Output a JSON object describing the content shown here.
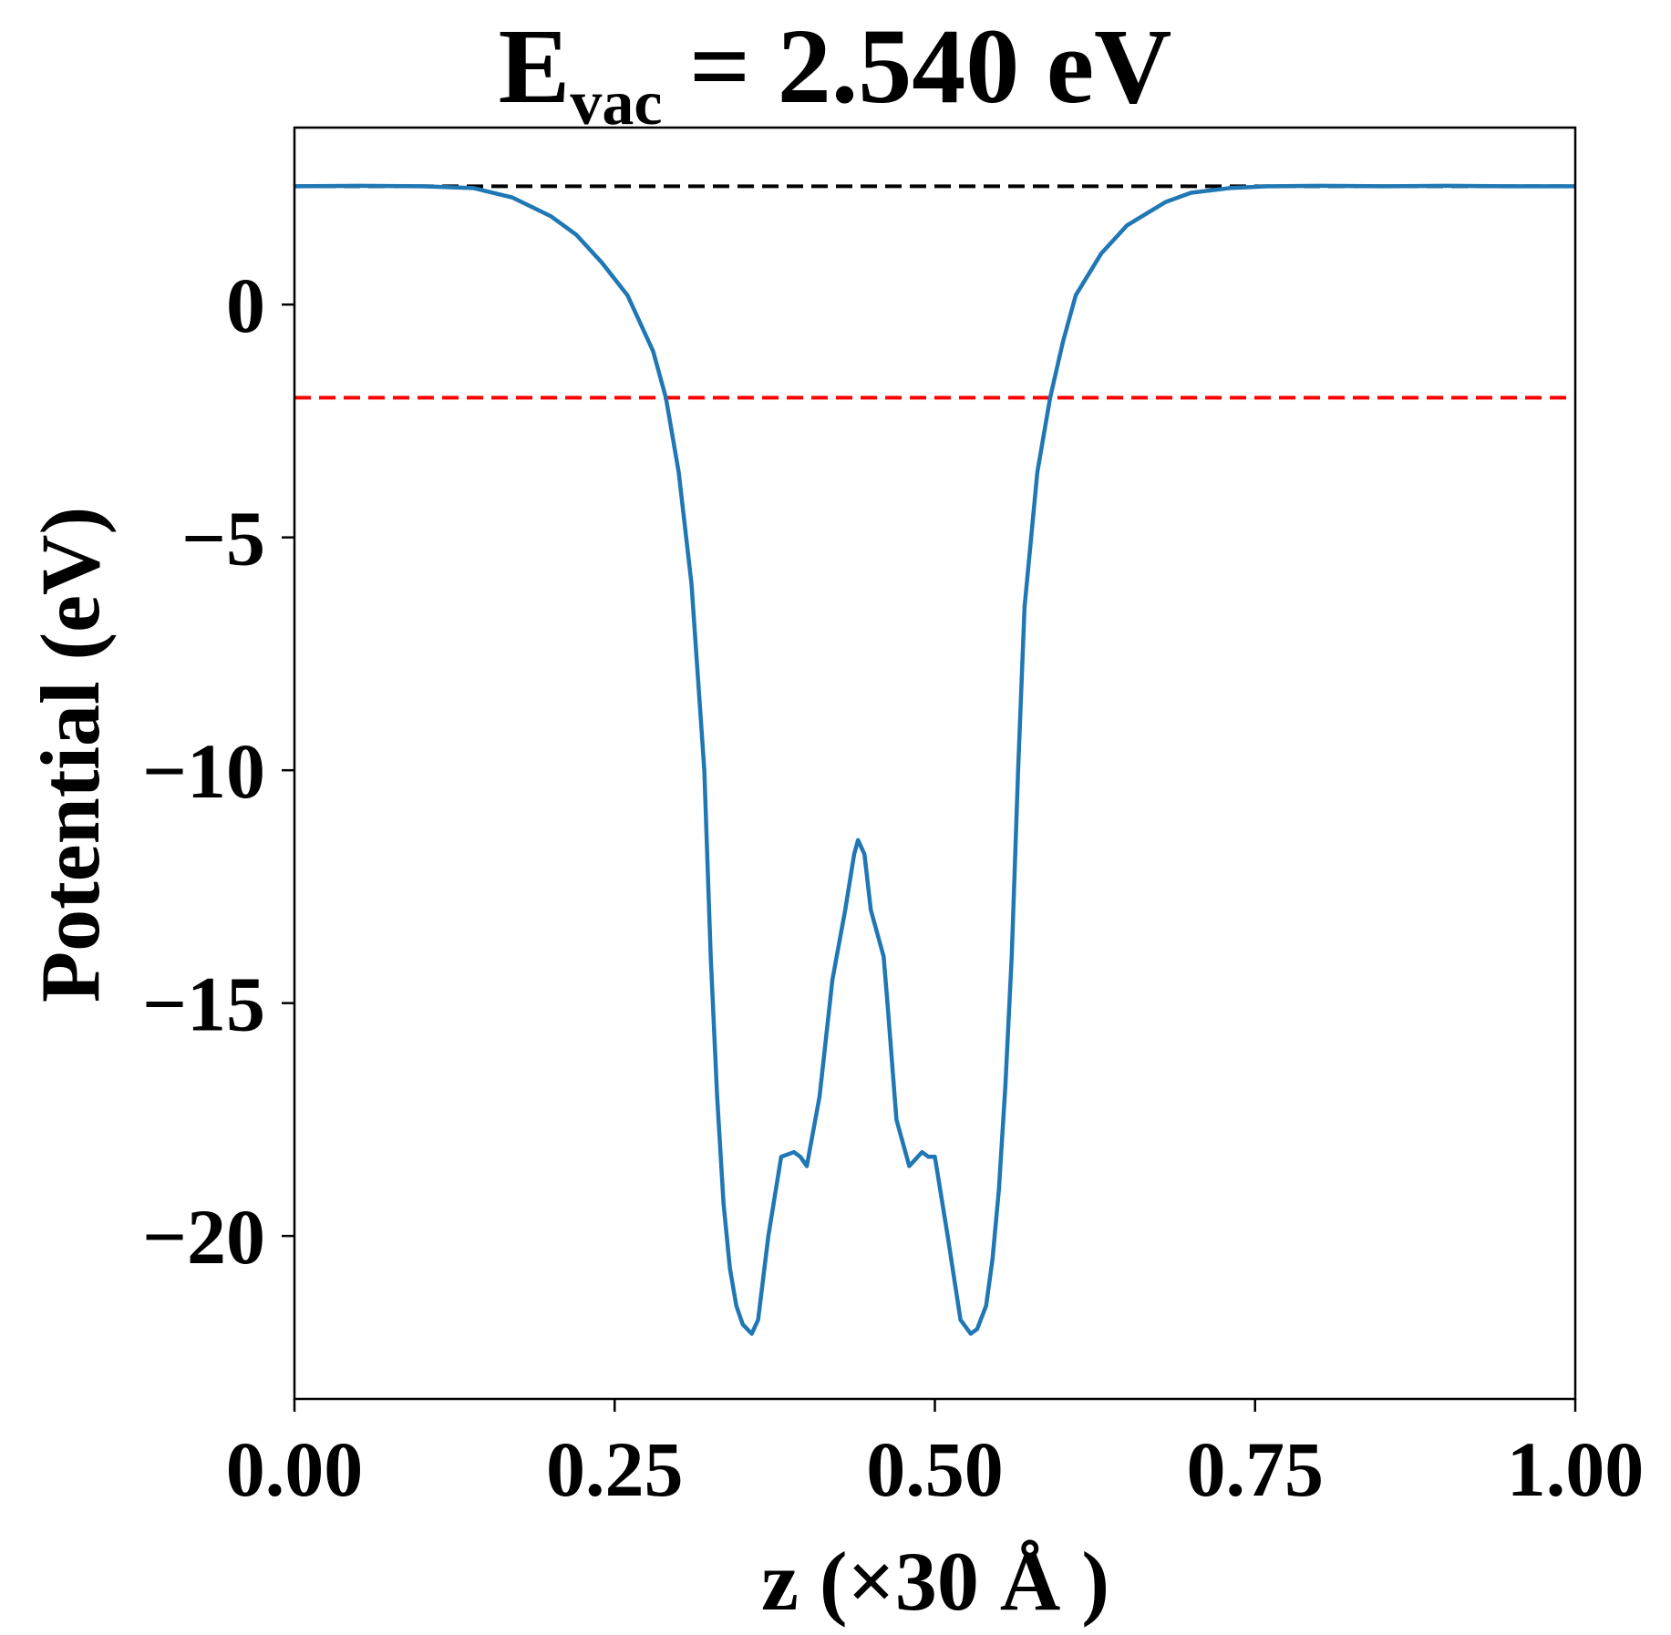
{
  "chart_data": {
    "type": "line",
    "title_main": "E",
    "title_sub": "vac",
    "title_rest": " = 2.540 eV",
    "xlabel": "z (×30 Å )",
    "ylabel": "Potential (eV)",
    "xlim": [
      0,
      1
    ],
    "ylim": [
      -23.5,
      3.8
    ],
    "x_ticks": [
      0,
      0.25,
      0.5,
      0.75,
      1.0
    ],
    "x_tick_labels": [
      "0.00",
      "0.25",
      "0.50",
      "0.75",
      "1.00"
    ],
    "y_ticks": [
      0,
      -5,
      -10,
      -15,
      -20
    ],
    "y_tick_labels": [
      "0",
      "−5",
      "−10",
      "−15",
      "−20"
    ],
    "grid": false,
    "colors": {
      "series": "#1f77b4",
      "vacuum_line": "#000000",
      "fermi_line": "#ff0000"
    },
    "reference_lines": [
      {
        "name": "vacuum level",
        "y": 2.54,
        "style": "dashed",
        "color": "#000000"
      },
      {
        "name": "fermi level",
        "y": -2.0,
        "style": "dashed",
        "color": "#ff0000"
      }
    ],
    "series": [
      {
        "color": "#1f77b4",
        "x": [
          0.0,
          0.05,
          0.1,
          0.14,
          0.17,
          0.2,
          0.22,
          0.24,
          0.26,
          0.28,
          0.29,
          0.3,
          0.31,
          0.32,
          0.325,
          0.33,
          0.335,
          0.34,
          0.345,
          0.35,
          0.357,
          0.362,
          0.37,
          0.38,
          0.39,
          0.395,
          0.4,
          0.41,
          0.42,
          0.43,
          0.437,
          0.44,
          0.445,
          0.45,
          0.455,
          0.46,
          0.463,
          0.47,
          0.48,
          0.49,
          0.495,
          0.5,
          0.51,
          0.52,
          0.528,
          0.533,
          0.54,
          0.545,
          0.55,
          0.555,
          0.56,
          0.565,
          0.57,
          0.58,
          0.59,
          0.6,
          0.61,
          0.63,
          0.65,
          0.68,
          0.7,
          0.73,
          0.76,
          0.8,
          0.85,
          0.9,
          0.95,
          1.0
        ],
        "y": [
          2.54,
          2.55,
          2.54,
          2.5,
          2.3,
          1.9,
          1.5,
          0.9,
          0.2,
          -1.0,
          -2.0,
          -3.6,
          -6.0,
          -10.0,
          -14.0,
          -17.0,
          -19.3,
          -20.7,
          -21.5,
          -21.9,
          -22.1,
          -21.8,
          -20.0,
          -18.3,
          -18.2,
          -18.3,
          -18.5,
          -17.0,
          -14.5,
          -13.0,
          -11.8,
          -11.5,
          -11.8,
          -13.0,
          -13.5,
          -14.0,
          -15.0,
          -17.5,
          -18.5,
          -18.2,
          -18.3,
          -18.3,
          -20.0,
          -21.8,
          -22.1,
          -22.0,
          -21.5,
          -20.5,
          -19.0,
          -16.8,
          -14.0,
          -10.0,
          -6.5,
          -3.6,
          -2.0,
          -0.8,
          0.2,
          1.1,
          1.7,
          2.2,
          2.4,
          2.5,
          2.54,
          2.55,
          2.54,
          2.55,
          2.54,
          2.54
        ]
      }
    ]
  }
}
